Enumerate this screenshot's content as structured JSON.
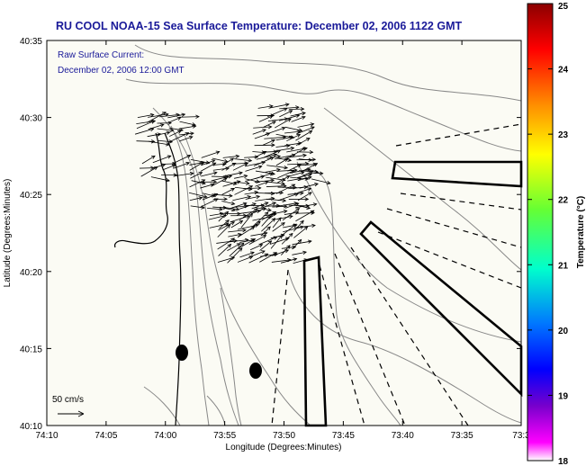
{
  "title": "RU COOL  NOAA-15  Sea Surface Temperature:  December 02, 2006 1122 GMT",
  "subtitle_line1": "Raw Surface Current:",
  "subtitle_line2": "December 02, 2006 12:00 GMT",
  "scale_label": "50 cm/s",
  "x_axis": {
    "label": "Longitude (Degrees:Minutes)",
    "ticks": [
      "74:10",
      "74:05",
      "74:00",
      "73:55",
      "73:50",
      "73:45",
      "73:40",
      "73:35",
      "73:3"
    ]
  },
  "y_axis": {
    "label": "Latitude (Degrees:Minutes)",
    "ticks": [
      "40:35",
      "40:30",
      "40:25",
      "40:20",
      "40:15",
      "40:10"
    ]
  },
  "colorbar": {
    "label": "Temperature (°C)",
    "ticks": [
      "25",
      "24",
      "23",
      "22",
      "21",
      "20",
      "19",
      "18"
    ],
    "colors": [
      "#8b0000",
      "#ff0000",
      "#ff8c00",
      "#ffff00",
      "#66ff33",
      "#00ffcc",
      "#0077ff",
      "#0000ff",
      "#7700cc",
      "#ff00ff",
      "#ffffff"
    ]
  }
}
